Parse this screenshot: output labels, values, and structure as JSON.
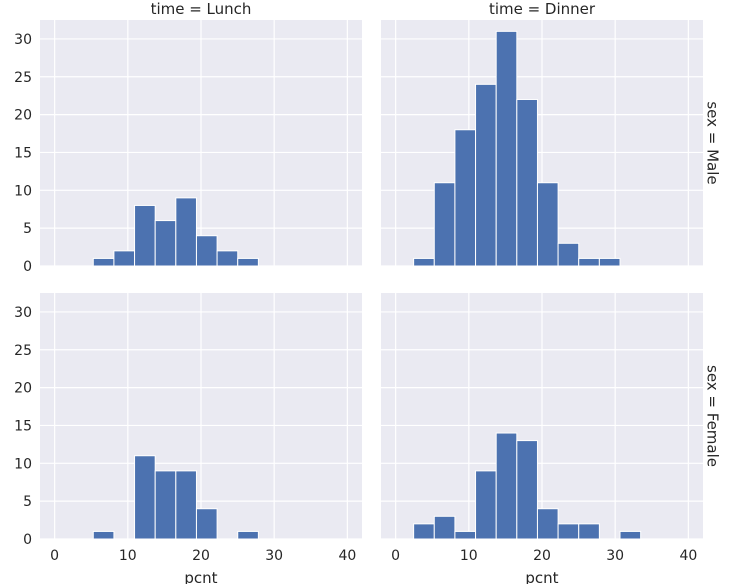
{
  "chart_data": {
    "type": "bar",
    "facets": {
      "col_var": "time",
      "row_var": "sex",
      "col_titles": [
        "time = Lunch",
        "time = Dinner"
      ],
      "row_titles": [
        "sex = Male",
        "sex = Female"
      ]
    },
    "xlabel": "pcnt",
    "ylabel": "",
    "xlim": [
      -2,
      42
    ],
    "ylim": [
      0,
      32.5
    ],
    "xticks": [
      0,
      10,
      20,
      30,
      40
    ],
    "yticks": [
      0,
      5,
      10,
      15,
      20,
      25,
      30
    ],
    "grid": true,
    "bar_color": "#4c72b0",
    "background_color": "#eaeaf2",
    "bin_edges": [
      2.46,
      5.28,
      8.1,
      10.92,
      13.74,
      16.56,
      19.38,
      22.2,
      25.02,
      27.84,
      30.66,
      33.48
    ],
    "panels": [
      {
        "row": 0,
        "col": 0,
        "counts": [
          0,
          1,
          2,
          8,
          6,
          9,
          4,
          2,
          1,
          0,
          0
        ]
      },
      {
        "row": 0,
        "col": 1,
        "counts": [
          1,
          11,
          18,
          24,
          31,
          22,
          11,
          3,
          1,
          1,
          0
        ]
      },
      {
        "row": 1,
        "col": 0,
        "counts": [
          0,
          1,
          0,
          11,
          9,
          9,
          4,
          0,
          1,
          0,
          0
        ]
      },
      {
        "row": 1,
        "col": 1,
        "counts": [
          2,
          3,
          1,
          9,
          14,
          13,
          4,
          2,
          2,
          0,
          1
        ]
      }
    ]
  }
}
